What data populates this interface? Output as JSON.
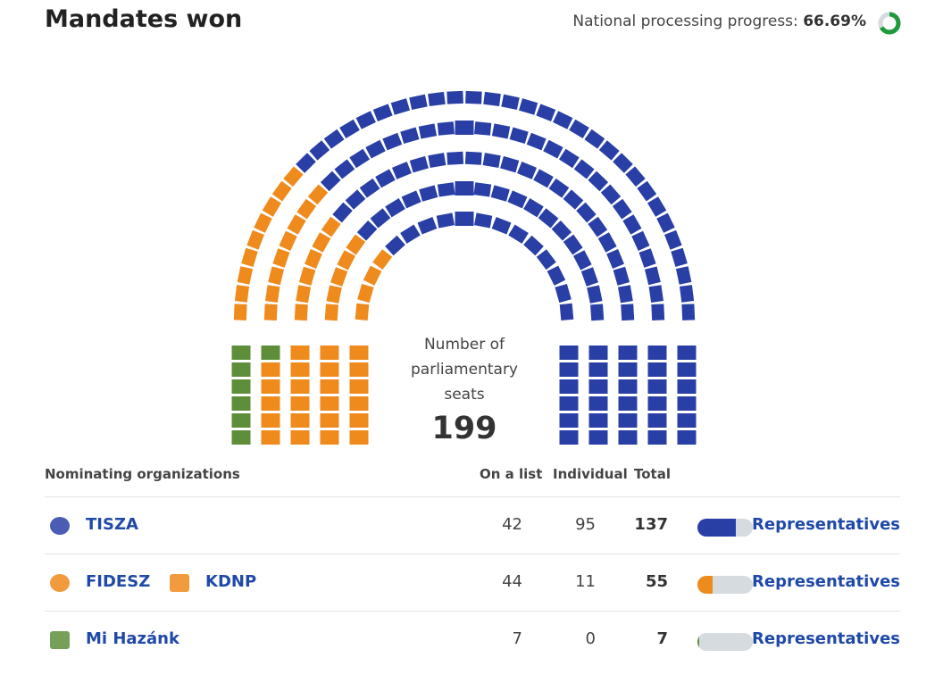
{
  "header": {
    "title": "Mandates won",
    "progress_label": "National processing progress:",
    "progress": {
      "value": 66.69,
      "label": "66.69%"
    }
  },
  "seats": {
    "label": "Number of parliamentary seats",
    "total": 199
  },
  "table": {
    "columns": [
      "Nominating organizations",
      "On a list",
      "Individual",
      "Total"
    ],
    "rows": [
      {
        "parties": [
          "TISZA"
        ],
        "list": 42,
        "individual": 95,
        "total": 137,
        "color": "#2a3fa6",
        "link": "Representatives"
      },
      {
        "parties": [
          "FIDESZ",
          "KDNP"
        ],
        "list": 44,
        "individual": 11,
        "total": 55,
        "color": "#ef8a1c",
        "link": "Representatives"
      },
      {
        "parties": [
          "Mi Hazánk"
        ],
        "list": 7,
        "individual": 0,
        "total": 7,
        "color": "#5e8e3a",
        "link": "Representatives"
      }
    ]
  }
}
